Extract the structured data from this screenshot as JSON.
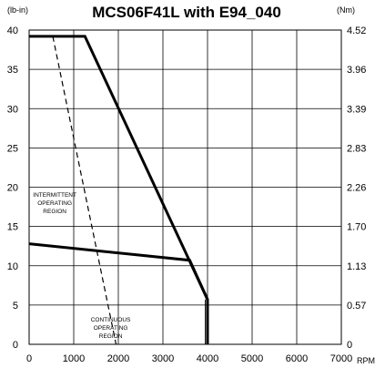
{
  "chart_data": {
    "type": "line",
    "title": "MCS06F41L with E94_040",
    "left_unit": "(lb-in)",
    "right_unit": "(Nm)",
    "x_unit": "RPM",
    "xlim": [
      0,
      7000
    ],
    "ylim": [
      0,
      40
    ],
    "x_ticks": [
      "0",
      "1000",
      "2000",
      "3000",
      "4000",
      "5000",
      "6000",
      "7000"
    ],
    "y_ticks": [
      "0",
      "5",
      "10",
      "15",
      "20",
      "25",
      "30",
      "35",
      "40"
    ],
    "right_ticks": [
      "0",
      "0.57",
      "1.13",
      "1.70",
      "2.26",
      "2.83",
      "3.39",
      "3.96",
      "4.52"
    ],
    "grid": true,
    "series": [
      {
        "style": "thick",
        "x": [
          0,
          1250,
          4000,
          4000
        ],
        "y": [
          39.2,
          39.2,
          5.7,
          0
        ]
      },
      {
        "style": "thick",
        "x": [
          0,
          3600,
          4000
        ],
        "y": [
          12.8,
          10.7,
          5.7
        ]
      },
      {
        "style": "dashed",
        "x": [
          530,
          1950
        ],
        "y": [
          39.2,
          0
        ]
      },
      {
        "style": "thin",
        "x": [
          3950,
          3950
        ],
        "y": [
          5.7,
          0
        ]
      }
    ],
    "annotations": [
      {
        "lines": [
          "INTERMITTENT",
          "OPERATING",
          "REGION"
        ],
        "x": 60,
        "y": 18.8
      },
      {
        "lines": [
          "CONTINUOUS",
          "OPERATING",
          "REGION"
        ],
        "x": 1400,
        "y": 2.9
      }
    ]
  }
}
